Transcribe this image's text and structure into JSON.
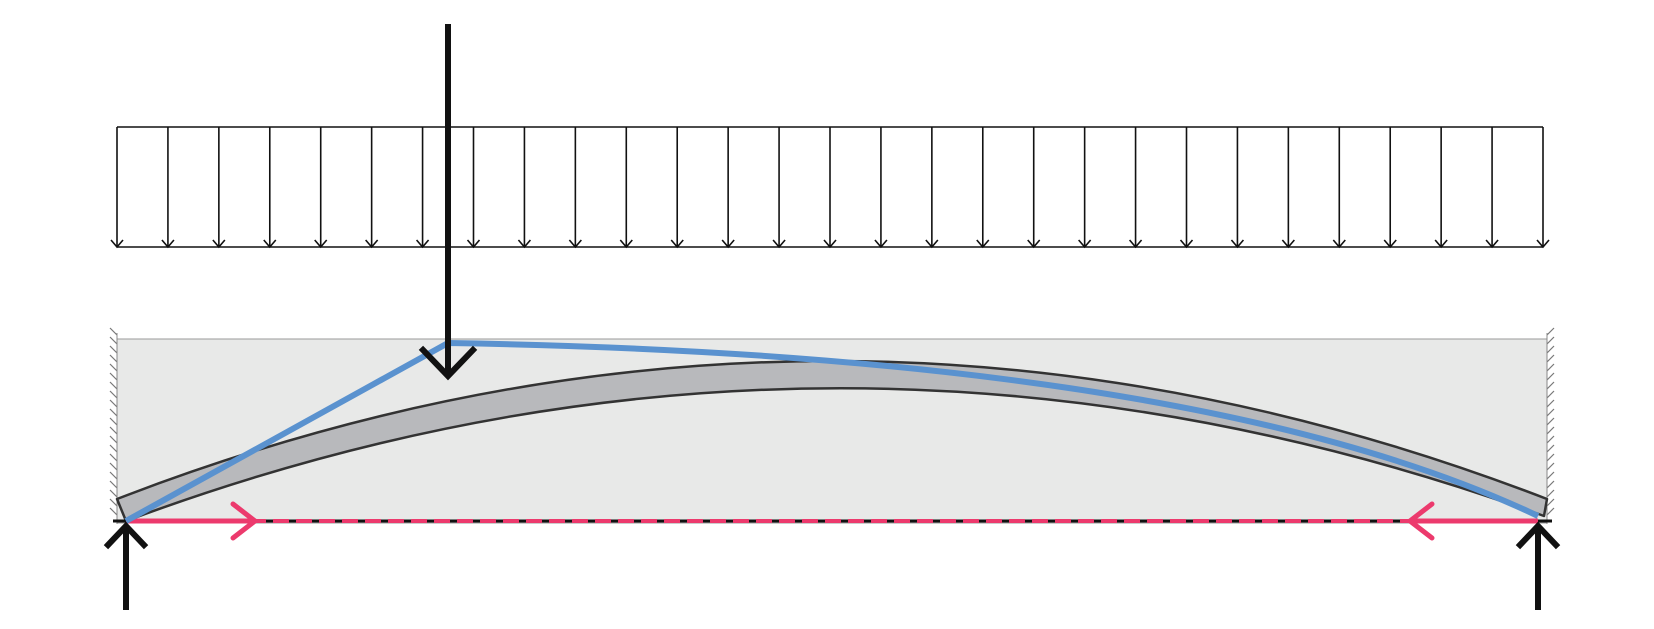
{
  "diagram": {
    "type": "arch-structure-load-diagram",
    "labels": [],
    "colors": {
      "background": "#ffffff",
      "load_lines": "#000000",
      "envelope_fill": "#e8e9e8",
      "envelope_stroke": "#9a9a9a",
      "arch_fill": "#b8b9bc",
      "arch_stroke": "#333333",
      "thrust_line": "#5a92cf",
      "tie_force": "#ec3a6d",
      "support_reaction": "#000000",
      "hatch": "#777777"
    },
    "elements": {
      "distributed_load": {
        "arrow_count": 29
      },
      "point_load": {
        "count": 1
      },
      "support_reactions": {
        "count": 2
      },
      "tie": {
        "style": "dashed",
        "arrows": 2
      },
      "thrust_line": {
        "style": "solid"
      },
      "arch": {
        "style": "curved-segment"
      },
      "supports": {
        "style": "hatched-wall",
        "count": 2
      }
    }
  }
}
